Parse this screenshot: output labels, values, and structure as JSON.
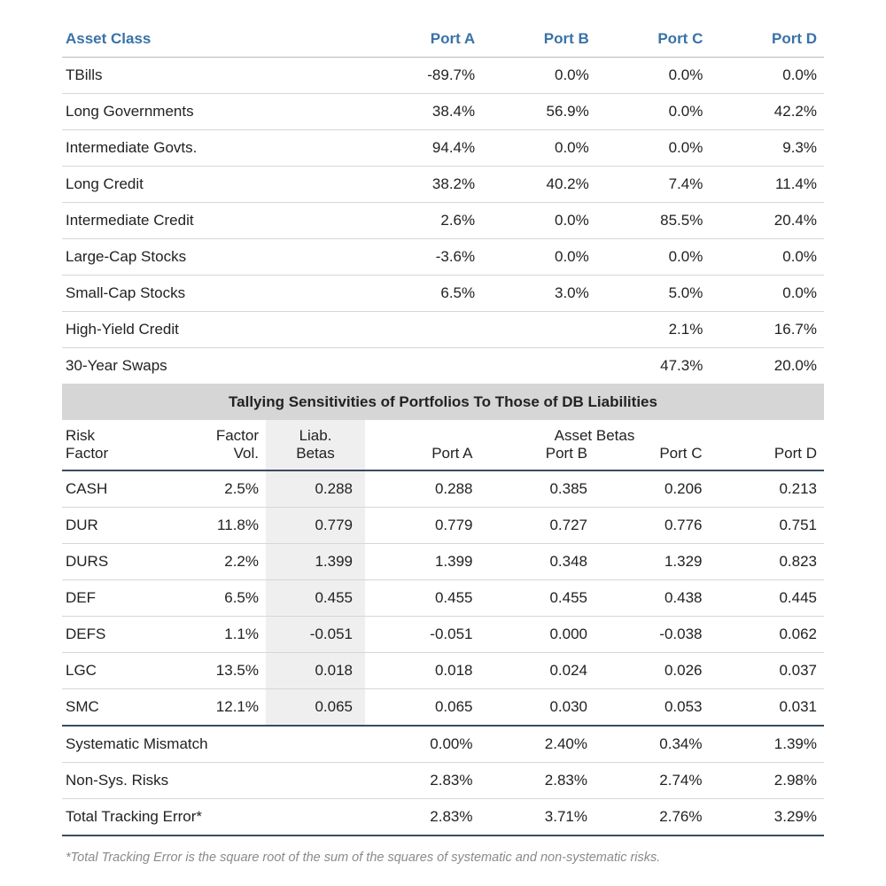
{
  "colors": {
    "header_text": "#3972a7",
    "body_text": "#222222",
    "row_divider": "#d6d6d6",
    "heavy_divider": "#3a4c5e",
    "banner_bg": "#d6d6d6",
    "liab_bg": "#efefef",
    "footnote_text": "#8a8a8a",
    "page_bg": "#ffffff"
  },
  "fonts": {
    "body_size_pt": 13,
    "header_weight": "600",
    "banner_weight": "700"
  },
  "allocations": {
    "header": "Asset Class",
    "ports": [
      "Port A",
      "Port B",
      "Port C",
      "Port D"
    ],
    "rows": [
      {
        "label": "TBills",
        "values": [
          "-89.7%",
          "0.0%",
          "0.0%",
          "0.0%"
        ]
      },
      {
        "label": "Long Governments",
        "values": [
          "38.4%",
          "56.9%",
          "0.0%",
          "42.2%"
        ]
      },
      {
        "label": "Intermediate Govts.",
        "values": [
          "94.4%",
          "0.0%",
          "0.0%",
          "9.3%"
        ]
      },
      {
        "label": "Long Credit",
        "values": [
          "38.2%",
          "40.2%",
          "7.4%",
          "11.4%"
        ]
      },
      {
        "label": "Intermediate Credit",
        "values": [
          "2.6%",
          "0.0%",
          "85.5%",
          "20.4%"
        ]
      },
      {
        "label": "Large-Cap Stocks",
        "values": [
          "-3.6%",
          "0.0%",
          "0.0%",
          "0.0%"
        ]
      },
      {
        "label": "Small-Cap Stocks",
        "values": [
          "6.5%",
          "3.0%",
          "5.0%",
          "0.0%"
        ]
      },
      {
        "label": "High-Yield Credit",
        "values": [
          "",
          "",
          "2.1%",
          "16.7%"
        ]
      },
      {
        "label": "30-Year Swaps",
        "values": [
          "",
          "",
          "47.3%",
          "20.0%"
        ]
      }
    ]
  },
  "banner": "Tallying Sensitivities of Portfolios To Those of DB Liabilities",
  "sensitivities": {
    "headers": {
      "risk_factor_l1": "Risk",
      "risk_factor_l2": "Factor",
      "factor_vol_l1": "Factor",
      "factor_vol_l2": "Vol.",
      "liab_l1": "Liab.",
      "liab_l2": "Betas",
      "asset_betas": "Asset Betas",
      "ports": [
        "Port A",
        "Port B",
        "Port C",
        "Port D"
      ]
    },
    "rows": [
      {
        "factor": "CASH",
        "vol": "2.5%",
        "liab": "0.288",
        "betas": [
          "0.288",
          "0.385",
          "0.206",
          "0.213"
        ]
      },
      {
        "factor": "DUR",
        "vol": "11.8%",
        "liab": "0.779",
        "betas": [
          "0.779",
          "0.727",
          "0.776",
          "0.751"
        ]
      },
      {
        "factor": "DURS",
        "vol": "2.2%",
        "liab": "1.399",
        "betas": [
          "1.399",
          "0.348",
          "1.329",
          "0.823"
        ]
      },
      {
        "factor": "DEF",
        "vol": "6.5%",
        "liab": "0.455",
        "betas": [
          "0.455",
          "0.455",
          "0.438",
          "0.445"
        ]
      },
      {
        "factor": "DEFS",
        "vol": "1.1%",
        "liab": "-0.051",
        "betas": [
          "-0.051",
          "0.000",
          "-0.038",
          "0.062"
        ]
      },
      {
        "factor": "LGC",
        "vol": "13.5%",
        "liab": "0.018",
        "betas": [
          "0.018",
          "0.024",
          "0.026",
          "0.037"
        ]
      },
      {
        "factor": "SMC",
        "vol": "12.1%",
        "liab": "0.065",
        "betas": [
          "0.065",
          "0.030",
          "0.053",
          "0.031"
        ]
      }
    ],
    "summary": [
      {
        "label": "Systematic Mismatch",
        "values": [
          "0.00%",
          "2.40%",
          "0.34%",
          "1.39%"
        ]
      },
      {
        "label": "Non-Sys. Risks",
        "values": [
          "2.83%",
          "2.83%",
          "2.74%",
          "2.98%"
        ]
      },
      {
        "label": "Total Tracking Error*",
        "values": [
          "2.83%",
          "3.71%",
          "2.76%",
          "3.29%"
        ]
      }
    ]
  },
  "footnote": "*Total Tracking Error is the square root of the sum of the squares of systematic and non-systematic risks."
}
